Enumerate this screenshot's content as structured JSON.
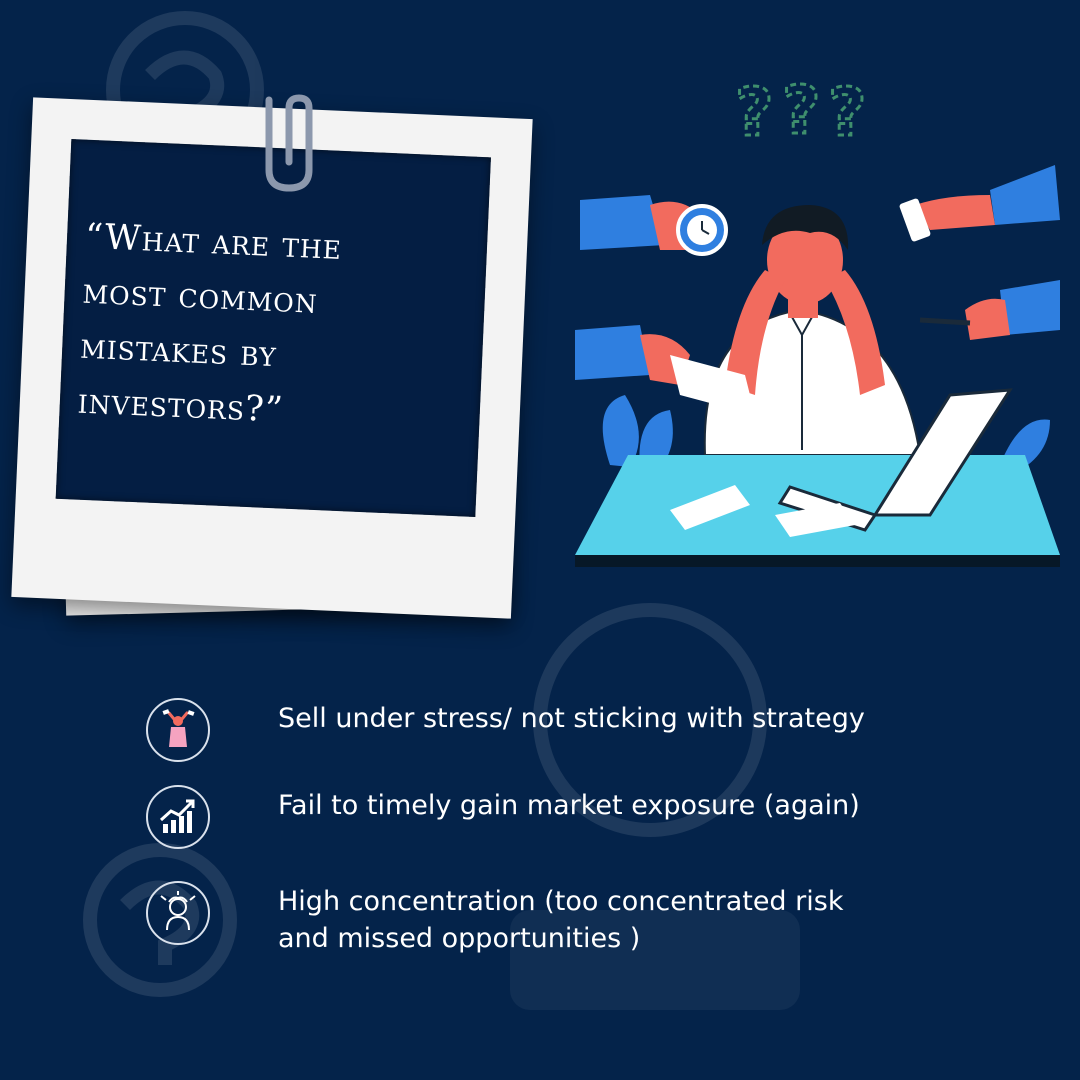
{
  "colors": {
    "background": "#04234a",
    "polaroid": "#f3f3f3",
    "polaroid_inner": "#041e43",
    "text": "#ffffff",
    "accent_blue": "#2f7fe0",
    "skin": "#f26b5e",
    "desk": "#56d1ea",
    "question_marks": "#3f8f6d"
  },
  "quote": {
    "line1": "“What are the",
    "line2": "most common",
    "line3": "mistakes by",
    "line4": "investors?”"
  },
  "list": {
    "items": [
      {
        "icon": "stressed-person-icon",
        "text": "Sell under stress/ not sticking with strategy"
      },
      {
        "icon": "growth-chart-icon",
        "text": "Fail to timely gain market exposure (again)"
      },
      {
        "icon": "frustrated-person-icon",
        "text": "High concentration (too concentrated risk and missed opportunities )"
      }
    ]
  }
}
